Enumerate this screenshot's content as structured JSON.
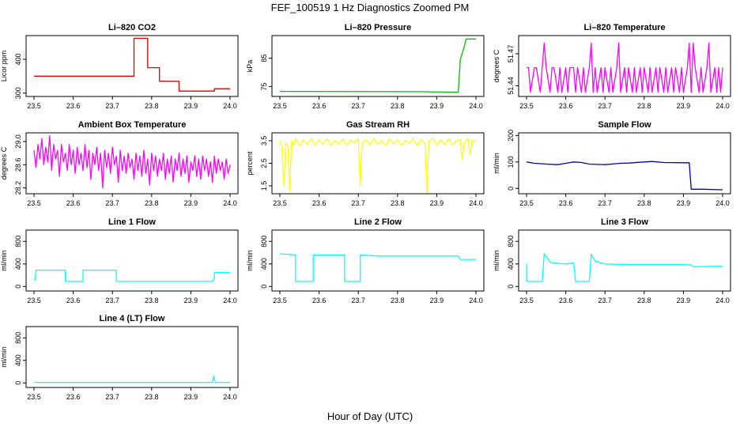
{
  "main_title": "FEF_100519  1 Hz Diagnostics Zoomed PM",
  "x_axis_label": "Hour of Day (UTC)",
  "chart_data": [
    {
      "type": "line",
      "title": "Li–820 CO2",
      "ylabel": "Licor ppm",
      "color": "#e00000",
      "x_ticks": [
        "23.5",
        "23.6",
        "23.7",
        "23.8",
        "23.9",
        "24.0"
      ],
      "y_ticks": [
        "300",
        "400"
      ],
      "xlim": [
        23.48,
        24.02
      ],
      "ylim": [
        290,
        470
      ],
      "series": [
        {
          "x": [
            23.5,
            23.755,
            23.755,
            23.79,
            23.79,
            23.82,
            23.82,
            23.87,
            23.87,
            23.96,
            23.96,
            24.0
          ],
          "y": [
            350,
            350,
            462,
            462,
            375,
            375,
            335,
            335,
            306,
            306,
            313,
            313
          ]
        }
      ]
    },
    {
      "type": "line",
      "title": "Li–820 Pressure",
      "ylabel": "kPa",
      "color": "#00c000",
      "x_ticks": [
        "23.5",
        "23.6",
        "23.7",
        "23.8",
        "23.9",
        "24.0"
      ],
      "y_ticks": [
        "75",
        "85"
      ],
      "xlim": [
        23.48,
        24.02
      ],
      "ylim": [
        71.5,
        93
      ],
      "series": [
        {
          "x": [
            23.5,
            23.85,
            23.95,
            23.955,
            23.96,
            23.97,
            23.975,
            24.0
          ],
          "y": [
            73.3,
            73.2,
            73.0,
            73.1,
            84.5,
            89.0,
            91.8,
            91.8
          ]
        }
      ]
    },
    {
      "type": "line",
      "title": "Li–820 Temperature",
      "ylabel": "degrees C",
      "color": "#ff00ff",
      "x_ticks": [
        "23.5",
        "23.6",
        "23.7",
        "23.8",
        "23.9",
        "24.0"
      ],
      "y_ticks": [
        "51.44",
        "51.47"
      ],
      "xlim": [
        23.48,
        24.02
      ],
      "ylim": [
        51.43,
        51.487
      ],
      "series": [
        {
          "x": [
            23.5,
            23.505,
            23.51,
            23.52,
            23.525,
            23.535,
            23.54,
            23.545,
            23.55,
            23.56,
            23.565,
            23.57,
            23.58,
            23.585,
            23.59,
            23.6,
            23.605,
            23.61,
            23.62,
            23.625,
            23.63,
            23.64,
            23.645,
            23.65,
            23.66,
            23.665,
            23.67,
            23.675,
            23.68,
            23.69,
            23.695,
            23.7,
            23.71,
            23.715,
            23.72,
            23.73,
            23.735,
            23.74,
            23.75,
            23.755,
            23.76,
            23.77,
            23.775,
            23.78,
            23.79,
            23.795,
            23.8,
            23.81,
            23.815,
            23.82,
            23.83,
            23.835,
            23.84,
            23.85,
            23.855,
            23.86,
            23.87,
            23.875,
            23.88,
            23.89,
            23.895,
            23.9,
            23.91,
            23.915,
            23.92,
            23.925,
            23.93,
            23.94,
            23.945,
            23.95,
            23.96,
            23.965,
            23.97,
            23.98,
            23.985,
            23.99,
            23.995,
            24.0
          ],
          "y": [
            51.457,
            51.457,
            51.434,
            51.457,
            51.457,
            51.434,
            51.457,
            51.48,
            51.457,
            51.434,
            51.457,
            51.457,
            51.434,
            51.457,
            51.434,
            51.457,
            51.434,
            51.457,
            51.457,
            51.434,
            51.457,
            51.434,
            51.457,
            51.434,
            51.457,
            51.48,
            51.434,
            51.457,
            51.434,
            51.457,
            51.434,
            51.457,
            51.434,
            51.457,
            51.434,
            51.457,
            51.48,
            51.434,
            51.457,
            51.434,
            51.457,
            51.434,
            51.457,
            51.434,
            51.457,
            51.434,
            51.457,
            51.434,
            51.457,
            51.434,
            51.457,
            51.434,
            51.457,
            51.434,
            51.457,
            51.434,
            51.457,
            51.434,
            51.457,
            51.434,
            51.457,
            51.434,
            51.457,
            51.48,
            51.434,
            51.48,
            51.457,
            51.434,
            51.457,
            51.434,
            51.457,
            51.48,
            51.434,
            51.457,
            51.434,
            51.457,
            51.434,
            51.457
          ]
        }
      ]
    },
    {
      "type": "line",
      "title": "Ambient Box Temperature",
      "ylabel": "degrees C",
      "color": "#ff00ff",
      "x_ticks": [
        "23.5",
        "23.6",
        "23.7",
        "23.8",
        "23.9",
        "24.0"
      ],
      "y_ticks": [
        "28.2",
        "28.6",
        "29.0"
      ],
      "xlim": [
        23.48,
        24.02
      ],
      "ylim": [
        28.1,
        29.15
      ],
      "series": [
        {
          "x": [
            23.5,
            23.505,
            23.51,
            23.515,
            23.52,
            23.525,
            23.53,
            23.535,
            23.54,
            23.545,
            23.55,
            23.555,
            23.56,
            23.565,
            23.57,
            23.575,
            23.58,
            23.585,
            23.59,
            23.595,
            23.6,
            23.605,
            23.61,
            23.615,
            23.62,
            23.625,
            23.63,
            23.635,
            23.64,
            23.645,
            23.65,
            23.655,
            23.66,
            23.665,
            23.67,
            23.675,
            23.68,
            23.685,
            23.69,
            23.695,
            23.7,
            23.705,
            23.71,
            23.715,
            23.72,
            23.725,
            23.73,
            23.735,
            23.74,
            23.745,
            23.75,
            23.755,
            23.76,
            23.765,
            23.77,
            23.775,
            23.78,
            23.785,
            23.79,
            23.795,
            23.8,
            23.805,
            23.81,
            23.815,
            23.82,
            23.825,
            23.83,
            23.835,
            23.84,
            23.845,
            23.85,
            23.855,
            23.86,
            23.865,
            23.87,
            23.875,
            23.88,
            23.885,
            23.89,
            23.895,
            23.9,
            23.905,
            23.91,
            23.915,
            23.92,
            23.925,
            23.93,
            23.935,
            23.94,
            23.945,
            23.95,
            23.955,
            23.96,
            23.965,
            23.97,
            23.975,
            23.98,
            23.985,
            23.99,
            23.995,
            24.0
          ],
          "y": [
            28.85,
            28.55,
            28.95,
            28.7,
            29.05,
            28.6,
            28.9,
            28.65,
            29.1,
            28.5,
            28.95,
            28.7,
            28.85,
            28.4,
            28.95,
            28.65,
            28.8,
            28.5,
            28.95,
            28.6,
            28.85,
            28.45,
            28.9,
            28.6,
            28.8,
            28.5,
            28.95,
            28.55,
            28.85,
            28.35,
            28.8,
            28.6,
            28.9,
            28.5,
            28.8,
            28.2,
            28.85,
            28.55,
            28.8,
            28.45,
            28.9,
            28.6,
            28.75,
            28.3,
            28.85,
            28.5,
            28.75,
            28.45,
            28.8,
            28.55,
            28.7,
            28.35,
            28.8,
            28.5,
            28.75,
            28.4,
            28.85,
            28.45,
            28.7,
            28.25,
            28.8,
            28.5,
            28.75,
            28.4,
            28.7,
            28.5,
            28.8,
            28.35,
            28.7,
            28.45,
            28.75,
            28.3,
            28.7,
            28.5,
            28.8,
            28.4,
            28.7,
            28.45,
            28.75,
            28.3,
            28.65,
            28.5,
            28.75,
            28.4,
            28.7,
            28.35,
            28.75,
            28.5,
            28.7,
            28.4,
            28.65,
            28.3,
            28.75,
            28.45,
            28.7,
            28.5,
            28.65,
            28.35,
            28.7,
            28.45,
            28.6
          ]
        }
      ]
    },
    {
      "type": "line",
      "title": "Gas Stream RH",
      "ylabel": "percent",
      "color": "#ffff00",
      "x_ticks": [
        "23.5",
        "23.6",
        "23.7",
        "23.8",
        "23.9",
        "24.0"
      ],
      "y_ticks": [
        "1.5",
        "2.5",
        "3.5"
      ],
      "xlim": [
        23.48,
        24.02
      ],
      "ylim": [
        1.15,
        3.85
      ],
      "series": [
        {
          "x": [
            23.5,
            23.505,
            23.51,
            23.515,
            23.52,
            23.525,
            23.53,
            23.535,
            23.54,
            23.55,
            23.56,
            23.57,
            23.58,
            23.59,
            23.6,
            23.61,
            23.62,
            23.63,
            23.64,
            23.65,
            23.66,
            23.67,
            23.68,
            23.69,
            23.7,
            23.705,
            23.71,
            23.72,
            23.73,
            23.74,
            23.75,
            23.76,
            23.77,
            23.78,
            23.79,
            23.8,
            23.81,
            23.82,
            23.83,
            23.84,
            23.85,
            23.86,
            23.87,
            23.875,
            23.88,
            23.89,
            23.9,
            23.91,
            23.92,
            23.93,
            23.94,
            23.95,
            23.96,
            23.965,
            23.97,
            23.98,
            23.985,
            23.99,
            24.0
          ],
          "y": [
            3.5,
            3.2,
            1.5,
            3.4,
            3.3,
            1.3,
            3.5,
            3.3,
            3.6,
            3.3,
            3.55,
            3.35,
            3.6,
            3.3,
            3.55,
            3.35,
            3.6,
            3.3,
            3.5,
            3.35,
            3.6,
            3.3,
            3.55,
            3.4,
            3.6,
            1.5,
            3.4,
            3.55,
            3.3,
            3.6,
            3.35,
            3.5,
            3.3,
            3.6,
            3.35,
            3.55,
            3.3,
            3.5,
            3.4,
            3.6,
            3.3,
            3.55,
            3.35,
            1.2,
            3.5,
            3.6,
            3.3,
            3.55,
            3.35,
            3.6,
            3.3,
            3.5,
            3.55,
            2.7,
            3.4,
            3.6,
            2.9,
            3.5,
            3.5
          ]
        }
      ]
    },
    {
      "type": "line",
      "title": "Sample Flow",
      "ylabel": "ml/min",
      "color": "#0000cc",
      "x_ticks": [
        "23.5",
        "23.6",
        "23.7",
        "23.8",
        "23.9",
        "24.0"
      ],
      "y_ticks": [
        "0",
        "100",
        "200"
      ],
      "xlim": [
        23.48,
        24.02
      ],
      "ylim": [
        -20,
        210
      ],
      "series": [
        {
          "x": [
            23.5,
            23.52,
            23.55,
            23.58,
            23.6,
            23.62,
            23.64,
            23.66,
            23.7,
            23.74,
            23.76,
            23.8,
            23.82,
            23.85,
            23.9,
            23.915,
            23.92,
            23.95,
            24.0
          ],
          "y": [
            100,
            95,
            92,
            90,
            95,
            100,
            98,
            92,
            90,
            95,
            96,
            100,
            102,
            98,
            97,
            97,
            -3,
            -3,
            -5
          ]
        }
      ]
    },
    {
      "type": "line",
      "title": "Line 1 Flow",
      "ylabel": "ml/min",
      "color": "#00ffff",
      "x_ticks": [
        "23.5",
        "23.6",
        "23.7",
        "23.8",
        "23.9",
        "24.0"
      ],
      "y_ticks": [
        "0",
        "400",
        "800"
      ],
      "xlim": [
        23.48,
        24.02
      ],
      "ylim": [
        -80,
        1000
      ],
      "series": [
        {
          "x": [
            23.5,
            23.503,
            23.505,
            23.58,
            23.58,
            23.625,
            23.625,
            23.71,
            23.71,
            23.955,
            23.96,
            23.96,
            24.0
          ],
          "y": [
            120,
            120,
            290,
            290,
            90,
            90,
            290,
            290,
            90,
            90,
            140,
            250,
            250
          ]
        }
      ]
    },
    {
      "type": "line",
      "title": "Line 2 Flow",
      "ylabel": "ml/min",
      "color": "#00ffff",
      "x_ticks": [
        "23.5",
        "23.6",
        "23.7",
        "23.8",
        "23.9",
        "24.0"
      ],
      "y_ticks": [
        "0",
        "400",
        "800"
      ],
      "xlim": [
        23.48,
        24.02
      ],
      "ylim": [
        -80,
        1000
      ],
      "series": [
        {
          "x": [
            23.5,
            23.54,
            23.54,
            23.585,
            23.585,
            23.665,
            23.665,
            23.705,
            23.705,
            23.75,
            23.8,
            23.85,
            23.9,
            23.955,
            23.96,
            24.0
          ],
          "y": [
            580,
            560,
            90,
            90,
            560,
            560,
            90,
            90,
            560,
            540,
            540,
            540,
            540,
            540,
            480,
            480
          ]
        }
      ]
    },
    {
      "type": "line",
      "title": "Line 3 Flow",
      "ylabel": "ml/min",
      "color": "#00ffff",
      "x_ticks": [
        "23.5",
        "23.6",
        "23.7",
        "23.8",
        "23.9",
        "24.0"
      ],
      "y_ticks": [
        "0",
        "400",
        "800"
      ],
      "xlim": [
        23.48,
        24.02
      ],
      "ylim": [
        -80,
        1000
      ],
      "series": [
        {
          "x": [
            23.5,
            23.5,
            23.505,
            23.54,
            23.545,
            23.56,
            23.58,
            23.6,
            23.62,
            23.625,
            23.66,
            23.665,
            23.675,
            23.7,
            23.75,
            23.8,
            23.85,
            23.9,
            23.92,
            23.925,
            24.0
          ],
          "y": [
            400,
            100,
            90,
            90,
            580,
            430,
            410,
            400,
            420,
            90,
            90,
            570,
            450,
            400,
            390,
            390,
            390,
            390,
            380,
            350,
            360
          ]
        }
      ]
    },
    {
      "type": "line",
      "title": "Line 4 (LT) Flow",
      "ylabel": "ml/min",
      "color": "#00ffff",
      "x_ticks": [
        "23.5",
        "23.6",
        "23.7",
        "23.8",
        "23.9",
        "24.0"
      ],
      "y_ticks": [
        "0",
        "400",
        "800"
      ],
      "xlim": [
        23.48,
        24.02
      ],
      "ylim": [
        -80,
        1000
      ],
      "series": [
        {
          "x": [
            23.5,
            23.7,
            23.9,
            23.955,
            23.958,
            23.962,
            24.0
          ],
          "y": [
            10,
            10,
            10,
            10,
            120,
            10,
            10
          ]
        }
      ]
    }
  ]
}
